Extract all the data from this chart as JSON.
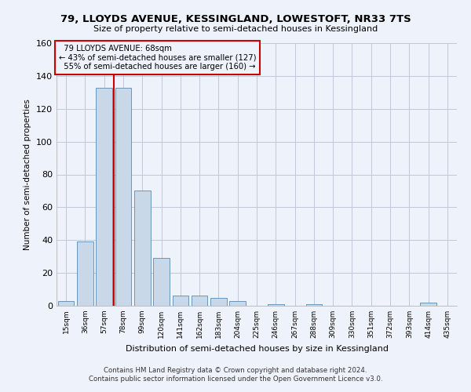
{
  "title": "79, LLOYDS AVENUE, KESSINGLAND, LOWESTOFT, NR33 7TS",
  "subtitle": "Size of property relative to semi-detached houses in Kessingland",
  "xlabel": "Distribution of semi-detached houses by size in Kessingland",
  "ylabel": "Number of semi-detached properties",
  "footer1": "Contains HM Land Registry data © Crown copyright and database right 2024.",
  "footer2": "Contains public sector information licensed under the Open Government Licence v3.0.",
  "categories": [
    "15sqm",
    "36sqm",
    "57sqm",
    "78sqm",
    "99sqm",
    "120sqm",
    "141sqm",
    "162sqm",
    "183sqm",
    "204sqm",
    "225sqm",
    "246sqm",
    "267sqm",
    "288sqm",
    "309sqm",
    "330sqm",
    "351sqm",
    "372sqm",
    "393sqm",
    "414sqm",
    "435sqm"
  ],
  "values": [
    3,
    39,
    133,
    133,
    70,
    29,
    6,
    6,
    5,
    3,
    0,
    1,
    0,
    1,
    0,
    0,
    0,
    0,
    0,
    2,
    0
  ],
  "bar_color": "#c8d8e8",
  "bar_edge_color": "#5a8ab0",
  "property_sqm": 68,
  "property_label": "79 LLOYDS AVENUE: 68sqm",
  "smaller_pct": 43,
  "smaller_count": 127,
  "larger_pct": 55,
  "larger_count": 160,
  "vline_color": "#cc0000",
  "ylim": [
    0,
    160
  ],
  "yticks": [
    0,
    20,
    40,
    60,
    80,
    100,
    120,
    140,
    160
  ],
  "grid_color": "#c0c8d8",
  "bg_color": "#eef2fa"
}
